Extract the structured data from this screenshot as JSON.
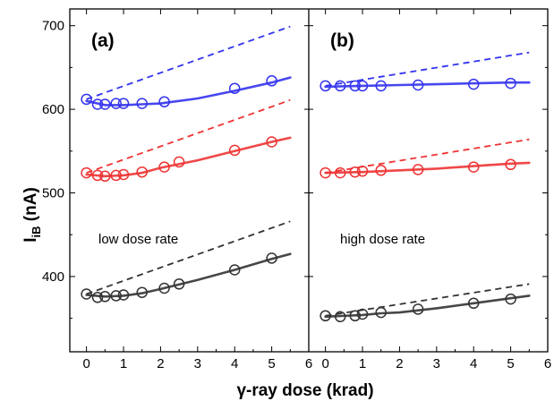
{
  "chart_data": {
    "type": "scatter",
    "ylabel_main": "I",
    "ylabel_sub": "iB",
    "ylabel_unit": " (nA)",
    "xlabel": "γ-ray dose (krad)",
    "ylim": [
      310,
      720
    ],
    "yticks": [
      400,
      500,
      600,
      700
    ],
    "colors": {
      "blue": "#3333ee",
      "red": "#ee3333",
      "black": "#333333"
    },
    "panels": [
      {
        "tag": "(a)",
        "annotation": "low dose rate",
        "xlim": [
          -0.45,
          6
        ],
        "xticks": [
          0,
          1,
          2,
          3,
          4,
          5,
          6
        ],
        "series": [
          {
            "color": "blue",
            "points": [
              [
                0,
                612
              ],
              [
                0.3,
                606
              ],
              [
                0.5,
                606
              ],
              [
                0.8,
                607
              ],
              [
                1.0,
                607
              ],
              [
                1.5,
                607
              ],
              [
                2.1,
                609
              ],
              [
                4.0,
                625
              ],
              [
                5.0,
                634
              ]
            ],
            "fit": [
              [
                0,
                610
              ],
              [
                0.5,
                605
              ],
              [
                1,
                605
              ],
              [
                1.5,
                606
              ],
              [
                2,
                607
              ],
              [
                3,
                613
              ],
              [
                4,
                622
              ],
              [
                5,
                632
              ],
              [
                5.5,
                638
              ]
            ],
            "trend": [
              [
                0,
                612
              ],
              [
                5.5,
                699
              ]
            ]
          },
          {
            "color": "red",
            "points": [
              [
                0,
                524
              ],
              [
                0.3,
                521
              ],
              [
                0.5,
                520
              ],
              [
                0.8,
                521
              ],
              [
                1.0,
                522
              ],
              [
                1.5,
                525
              ],
              [
                2.1,
                531
              ],
              [
                2.5,
                537
              ],
              [
                4.0,
                551
              ],
              [
                5.0,
                561
              ]
            ],
            "fit": [
              [
                0,
                522
              ],
              [
                0.5,
                520
              ],
              [
                1,
                521
              ],
              [
                1.5,
                524
              ],
              [
                2,
                530
              ],
              [
                3,
                539
              ],
              [
                4,
                550
              ],
              [
                5,
                561
              ],
              [
                5.5,
                566
              ]
            ],
            "trend": [
              [
                0,
                524
              ],
              [
                5.5,
                611
              ]
            ]
          },
          {
            "color": "black",
            "points": [
              [
                0,
                379
              ],
              [
                0.3,
                375
              ],
              [
                0.5,
                376
              ],
              [
                0.8,
                377
              ],
              [
                1.0,
                378
              ],
              [
                1.5,
                381
              ],
              [
                2.1,
                386
              ],
              [
                2.5,
                391
              ],
              [
                4.0,
                408
              ],
              [
                5.0,
                422
              ]
            ],
            "fit": [
              [
                0,
                378
              ],
              [
                0.5,
                376
              ],
              [
                1,
                377
              ],
              [
                1.5,
                380
              ],
              [
                2,
                385
              ],
              [
                3,
                396
              ],
              [
                4,
                408
              ],
              [
                5,
                421
              ],
              [
                5.5,
                427
              ]
            ],
            "trend": [
              [
                0,
                379
              ],
              [
                5.5,
                466
              ]
            ]
          }
        ]
      },
      {
        "tag": "(b)",
        "annotation": "high dose rate",
        "xlim": [
          -0.45,
          6
        ],
        "xticks": [
          0,
          1,
          2,
          3,
          4,
          5,
          6
        ],
        "series": [
          {
            "color": "blue",
            "points": [
              [
                0,
                628
              ],
              [
                0.4,
                628
              ],
              [
                0.8,
                628
              ],
              [
                1.0,
                628
              ],
              [
                1.5,
                628
              ],
              [
                2.5,
                629
              ],
              [
                4.0,
                630
              ],
              [
                5.0,
                631
              ]
            ],
            "fit": [
              [
                0,
                627
              ],
              [
                1,
                628
              ],
              [
                2,
                629
              ],
              [
                3,
                630
              ],
              [
                4,
                631
              ],
              [
                5,
                632
              ],
              [
                5.5,
                632
              ]
            ],
            "trend": [
              [
                0,
                628
              ],
              [
                5.5,
                668
              ]
            ]
          },
          {
            "color": "red",
            "points": [
              [
                0,
                524
              ],
              [
                0.4,
                524
              ],
              [
                0.8,
                525
              ],
              [
                1.0,
                526
              ],
              [
                1.5,
                527
              ],
              [
                2.5,
                528
              ],
              [
                4.0,
                531
              ],
              [
                5.0,
                534
              ]
            ],
            "fit": [
              [
                0,
                524
              ],
              [
                1,
                525
              ],
              [
                2,
                527
              ],
              [
                3,
                529
              ],
              [
                4,
                532
              ],
              [
                5,
                535
              ],
              [
                5.5,
                536
              ]
            ],
            "trend": [
              [
                0,
                524
              ],
              [
                5.5,
                564
              ]
            ]
          },
          {
            "color": "black",
            "points": [
              [
                0,
                353
              ],
              [
                0.4,
                352
              ],
              [
                0.8,
                353
              ],
              [
                1.0,
                355
              ],
              [
                1.5,
                357
              ],
              [
                2.5,
                361
              ],
              [
                4.0,
                368
              ],
              [
                5.0,
                373
              ]
            ],
            "fit": [
              [
                0,
                352
              ],
              [
                1,
                354
              ],
              [
                1.5,
                356
              ],
              [
                2,
                357
              ],
              [
                3,
                362
              ],
              [
                4,
                368
              ],
              [
                5,
                374
              ],
              [
                5.5,
                377
              ]
            ],
            "trend": [
              [
                0,
                353
              ],
              [
                5.5,
                391
              ]
            ]
          }
        ]
      }
    ]
  }
}
